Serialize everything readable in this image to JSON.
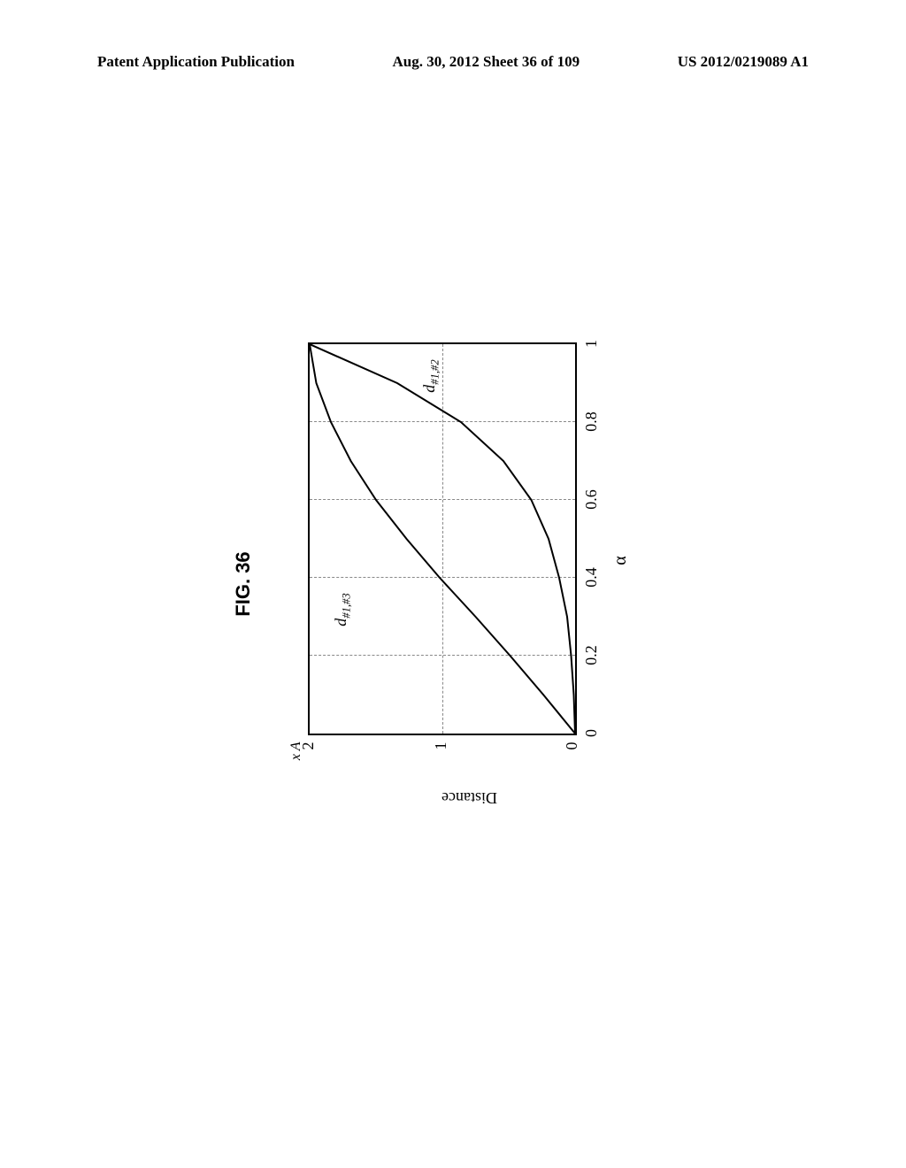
{
  "header": {
    "left": "Patent Application Publication",
    "center": "Aug. 30, 2012  Sheet 36 of 109",
    "right": "US 2012/0219089 A1"
  },
  "figure": {
    "title": "FIG. 36",
    "ylabel": "Distance",
    "xlabel": "α",
    "xlim": [
      0,
      1
    ],
    "ylim": [
      0,
      2
    ],
    "xticks": [
      0,
      0.2,
      0.4,
      0.6,
      0.8,
      1
    ],
    "ytick_labels": [
      "0",
      "1",
      "2"
    ],
    "ytick_top_prefix": "x A",
    "grid_x": [
      0.2,
      0.4,
      0.6,
      0.8
    ],
    "grid_y": [
      1
    ],
    "series": [
      {
        "label_html": "d",
        "label_sub": "#1,#3",
        "label_pos": {
          "x": 0.32,
          "y": 1.77
        },
        "points": [
          [
            0,
            0
          ],
          [
            0.1,
            0.24
          ],
          [
            0.2,
            0.49
          ],
          [
            0.3,
            0.75
          ],
          [
            0.4,
            1.02
          ],
          [
            0.5,
            1.27
          ],
          [
            0.6,
            1.5
          ],
          [
            0.7,
            1.69
          ],
          [
            0.8,
            1.84
          ],
          [
            0.9,
            1.95
          ],
          [
            1.0,
            2.0
          ]
        ],
        "color": "#000000"
      },
      {
        "label_html": "d",
        "label_sub": "#1,#2",
        "label_pos": {
          "x": 0.92,
          "y": 1.1
        },
        "points": [
          [
            0,
            0
          ],
          [
            0.1,
            0.01
          ],
          [
            0.2,
            0.03
          ],
          [
            0.3,
            0.06
          ],
          [
            0.4,
            0.12
          ],
          [
            0.5,
            0.2
          ],
          [
            0.6,
            0.33
          ],
          [
            0.7,
            0.54
          ],
          [
            0.8,
            0.86
          ],
          [
            0.9,
            1.34
          ],
          [
            1.0,
            2.0
          ]
        ],
        "color": "#000000"
      }
    ],
    "styling": {
      "background_color": "#ffffff",
      "grid_color": "#888888",
      "border_color": "#000000",
      "line_width": 2
    }
  }
}
